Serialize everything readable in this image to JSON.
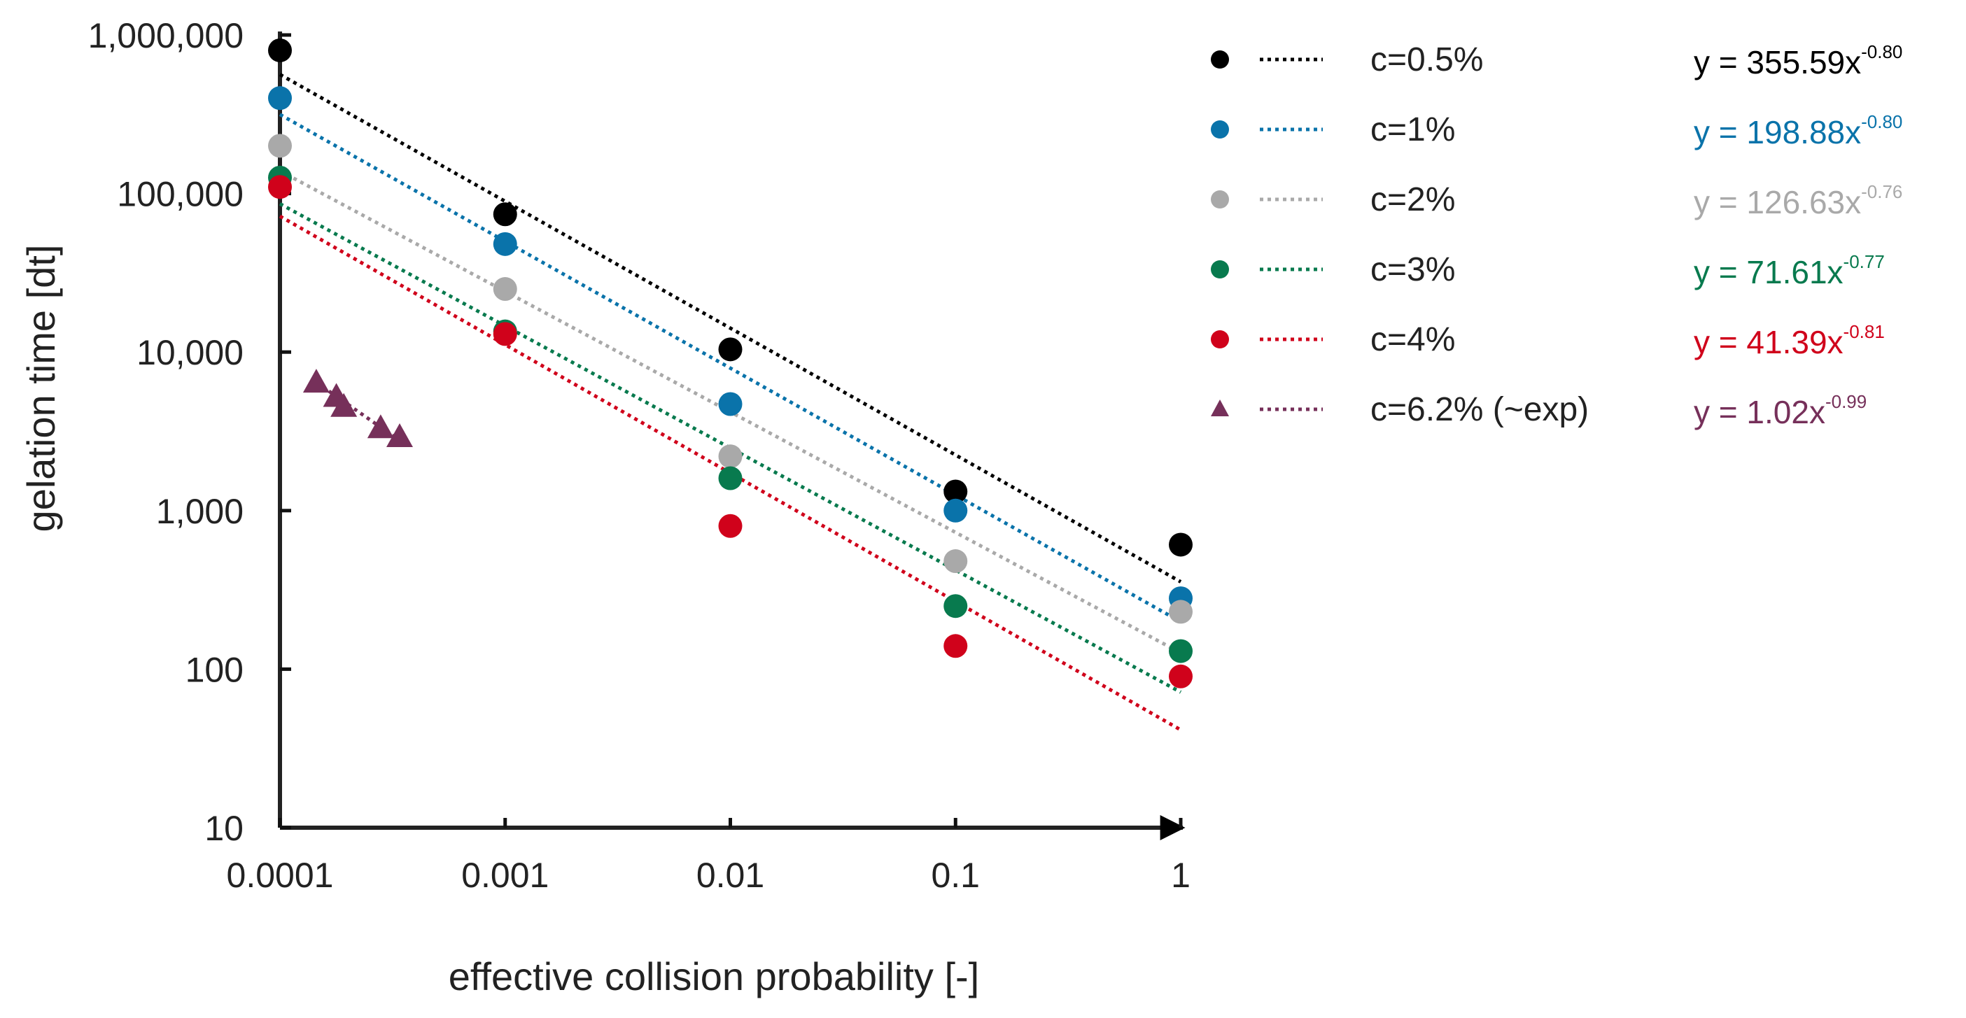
{
  "chart_data": {
    "type": "scatter",
    "title": "",
    "xlabel": "effective collision probability [-]",
    "ylabel": "gelation time [dt]",
    "xscale": "log",
    "yscale": "log",
    "xlim": [
      0.0001,
      1
    ],
    "ylim": [
      10,
      1000000
    ],
    "x_ticks": [
      "0.0001",
      "0.001",
      "0.01",
      "0.1",
      "1"
    ],
    "x_tick_values": [
      0.0001,
      0.001,
      0.01,
      0.1,
      1
    ],
    "y_ticks": [
      "10",
      "100",
      "1,000",
      "10,000",
      "100,000",
      "1,000,000"
    ],
    "y_tick_values": [
      10,
      100,
      1000,
      10000,
      100000,
      1000000
    ],
    "grid": false,
    "legend_position": "right",
    "series": [
      {
        "name": "c=0.5%",
        "color": "#000000",
        "marker": "circle",
        "x": [
          0.0001,
          0.001,
          0.01,
          0.1,
          1
        ],
        "y": [
          800000,
          74000,
          10400,
          1320,
          610
        ],
        "fit": {
          "a": 355.59,
          "b": -0.8
        },
        "equation": "y = 355.59x",
        "exponent": "-0.80"
      },
      {
        "name": "c=1%",
        "color": "#0a73aa",
        "marker": "circle",
        "x": [
          0.0001,
          0.001,
          0.01,
          0.1,
          1
        ],
        "y": [
          400000,
          48000,
          4700,
          1000,
          280
        ],
        "fit": {
          "a": 198.88,
          "b": -0.8
        },
        "equation": "y = 198.88x",
        "exponent": "-0.80"
      },
      {
        "name": "c=2%",
        "color": "#a9a9a9",
        "marker": "circle",
        "x": [
          0.0001,
          0.001,
          0.01,
          0.1,
          1
        ],
        "y": [
          200000,
          25000,
          2200,
          480,
          230
        ],
        "fit": {
          "a": 126.63,
          "b": -0.76
        },
        "equation": "y = 126.63x",
        "exponent": "-0.76"
      },
      {
        "name": "c=3%",
        "color": "#087a4e",
        "marker": "circle",
        "x": [
          0.0001,
          0.001,
          0.01,
          0.1,
          1
        ],
        "y": [
          126000,
          13500,
          1600,
          250,
          130
        ],
        "fit": {
          "a": 71.61,
          "b": -0.77
        },
        "equation": "y = 71.61x",
        "exponent": "-0.77"
      },
      {
        "name": "c=4%",
        "color": "#d0021b",
        "marker": "circle",
        "x": [
          0.0001,
          0.001,
          0.01,
          0.1,
          1
        ],
        "y": [
          110000,
          13000,
          800,
          140,
          90
        ],
        "fit": {
          "a": 41.39,
          "b": -0.81
        },
        "equation": "y = 41.39x",
        "exponent": "-0.81"
      },
      {
        "name": "c=6.2% (~exp)",
        "color": "#76305a",
        "marker": "triangle",
        "x": [
          0.000145,
          0.000178,
          0.000192,
          0.00028,
          0.00034
        ],
        "y": [
          6400,
          5200,
          4500,
          3300,
          2900
        ],
        "fit": {
          "a": 1.02,
          "b": -0.99,
          "xrange": [
            0.000145,
            0.00034
          ]
        },
        "equation": "y = 1.02x",
        "exponent": "-0.99"
      }
    ]
  }
}
